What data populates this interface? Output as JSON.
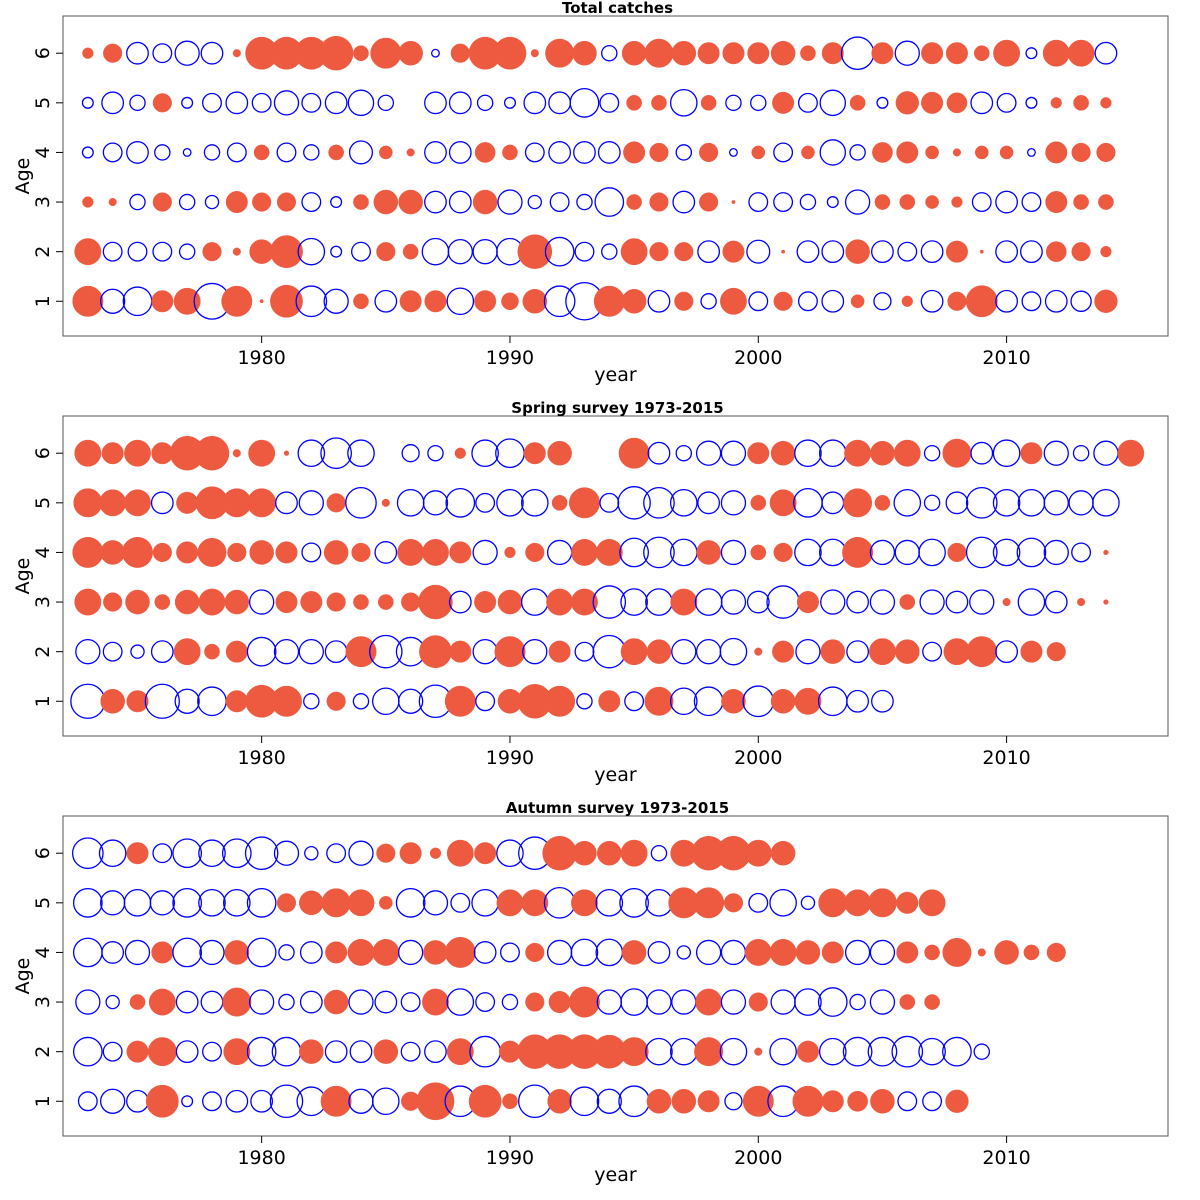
{
  "colors": {
    "positive": "#ee5a40",
    "negative": "#0000ff",
    "axis": "#000000"
  },
  "chart_data": [
    {
      "type": "scatter",
      "subtype": "bubble-residual",
      "title": "Total catches",
      "xlabel": "year",
      "ylabel": "Age",
      "xlim": [
        1972,
        2016.5
      ],
      "ylim": [
        0.3,
        6.75
      ],
      "xticks": [
        1980,
        1990,
        2000,
        2010
      ],
      "yticks": [
        1,
        2,
        3,
        4,
        5,
        6
      ],
      "years_start": 1973,
      "rows": {
        "6": [
          0.1,
          0.3,
          -0.4,
          -0.3,
          -0.5,
          -0.4,
          0.05,
          0.9,
          0.9,
          0.9,
          1.0,
          0.2,
          0.8,
          0.5,
          -0.05,
          0.3,
          0.9,
          0.9,
          0.05,
          0.7,
          0.5,
          -0.2,
          0.5,
          0.7,
          0.5,
          0.4,
          0.4,
          0.4,
          0.5,
          0.2,
          0.4,
          -0.9,
          0.4,
          -0.5,
          0.4,
          0.4,
          0.2,
          0.6,
          -0.1,
          0.6,
          0.6,
          -0.4
        ],
        "5": [
          -0.1,
          -0.4,
          -0.2,
          0.3,
          -0.1,
          -0.3,
          -0.4,
          -0.3,
          -0.5,
          -0.3,
          -0.4,
          -0.55,
          -0.2,
          0,
          -0.4,
          -0.4,
          -0.2,
          -0.1,
          -0.4,
          -0.4,
          -0.7,
          -0.3,
          0.2,
          0.2,
          -0.6,
          0.2,
          -0.2,
          -0.2,
          0.4,
          -0.3,
          -0.55,
          0.2,
          -0.1,
          0.45,
          0.4,
          0.35,
          -0.4,
          -0.3,
          -0.1,
          0.1,
          0.2,
          0.1
        ],
        "4": [
          -0.1,
          -0.3,
          -0.4,
          -0.2,
          -0.05,
          -0.2,
          -0.3,
          0.2,
          -0.3,
          -0.2,
          0.2,
          -0.45,
          0.15,
          0.05,
          -0.4,
          -0.4,
          0.35,
          0.2,
          -0.3,
          -0.4,
          -0.4,
          -0.4,
          0.4,
          0.3,
          -0.2,
          0.3,
          -0.05,
          0.15,
          -0.3,
          0.15,
          -0.55,
          -0.2,
          0.35,
          0.4,
          0.15,
          0.05,
          0.15,
          0.15,
          -0.05,
          0.4,
          0.3,
          0.3
        ],
        "3": [
          0.1,
          0.05,
          -0.2,
          0.3,
          -0.2,
          -0.15,
          0.4,
          0.3,
          0.3,
          -0.3,
          -0.1,
          0.2,
          0.5,
          0.5,
          -0.4,
          -0.4,
          0.5,
          -0.5,
          -0.15,
          -0.3,
          -0.2,
          -0.7,
          0.2,
          0.3,
          -0.4,
          0.3,
          0.01,
          -0.3,
          -0.3,
          -0.2,
          -0.1,
          -0.5,
          0.2,
          0.2,
          0.15,
          0.1,
          -0.3,
          -0.4,
          -0.3,
          0.4,
          0.2,
          0.2
        ],
        "2": [
          0.6,
          -0.3,
          -0.3,
          -0.3,
          -0.2,
          0.3,
          0.05,
          0.5,
          0.9,
          -0.6,
          -0.1,
          -0.3,
          0.3,
          0.2,
          -0.6,
          -0.5,
          -0.5,
          -0.6,
          1.0,
          -0.7,
          -0.3,
          -0.2,
          0.6,
          0.3,
          0.3,
          -0.4,
          0.4,
          -0.45,
          0.01,
          -0.4,
          -0.4,
          0.5,
          -0.4,
          -0.3,
          -0.4,
          0.4,
          0.01,
          -0.4,
          -0.4,
          0.35,
          0.3,
          0.1
        ],
        "1": [
          0.8,
          -0.5,
          -0.7,
          0.4,
          0.6,
          -1.1,
          0.8,
          0.01,
          0.9,
          -0.8,
          -0.5,
          0.2,
          -0.4,
          0.4,
          0.4,
          -0.6,
          0.4,
          0.25,
          0.5,
          -0.8,
          -1.2,
          0.8,
          0.5,
          -0.4,
          0.3,
          -0.2,
          0.6,
          -0.3,
          0.3,
          -0.3,
          -0.4,
          0.15,
          -0.25,
          0.1,
          -0.4,
          0.3,
          0.85,
          -0.4,
          -0.3,
          -0.4,
          -0.35,
          0.45
        ]
      }
    },
    {
      "type": "scatter",
      "subtype": "bubble-residual",
      "title": "Spring survey 1973-2015",
      "xlabel": "year",
      "ylabel": "Age",
      "xlim": [
        1972,
        2016.5
      ],
      "ylim": [
        0.3,
        6.75
      ],
      "xticks": [
        1980,
        1990,
        2000,
        2010
      ],
      "yticks": [
        1,
        2,
        3,
        4,
        5,
        6
      ],
      "years_start": 1973,
      "rows": {
        "6": [
          0.6,
          0.4,
          0.6,
          0.4,
          1.0,
          1.0,
          0.05,
          0.6,
          0.02,
          -0.6,
          -0.8,
          -0.6,
          0,
          -0.25,
          -0.2,
          0.1,
          -0.6,
          -0.7,
          0.4,
          0.5,
          0,
          0,
          0.8,
          -0.4,
          -0.2,
          -0.5,
          -0.5,
          0.4,
          0.5,
          -0.6,
          -0.6,
          0.6,
          0.5,
          0.6,
          -0.2,
          0.7,
          -0.4,
          -0.6,
          0.4,
          -0.5,
          -0.2,
          -0.5,
          0.6
        ],
        "5": [
          0.7,
          0.6,
          0.6,
          -0.4,
          0.4,
          0.9,
          0.7,
          0.7,
          -0.4,
          -0.5,
          0.3,
          -0.8,
          0.05,
          -0.6,
          -0.5,
          -0.7,
          -0.3,
          -0.6,
          -0.6,
          0.2,
          0.8,
          -0.3,
          -0.9,
          -0.8,
          -0.6,
          -0.4,
          -0.5,
          0.2,
          0.6,
          -0.7,
          -0.4,
          0.7,
          0.2,
          -0.6,
          -0.2,
          -0.4,
          -0.8,
          -0.6,
          -0.6,
          -0.5,
          -0.5,
          -0.6
        ],
        "4": [
          0.8,
          0.5,
          0.8,
          0.3,
          0.4,
          0.7,
          0.3,
          0.5,
          0.4,
          -0.3,
          0.5,
          0.3,
          -0.4,
          0.6,
          0.6,
          0.4,
          -0.5,
          0.1,
          0.3,
          -0.5,
          0.6,
          0.6,
          -0.7,
          -0.8,
          -0.6,
          0.5,
          -0.5,
          0.2,
          0.3,
          -0.6,
          -0.6,
          0.8,
          -0.5,
          -0.5,
          -0.6,
          0.3,
          -0.8,
          -0.6,
          -0.7,
          -0.5,
          -0.3,
          0.02
        ],
        "3": [
          0.6,
          0.3,
          0.5,
          0.2,
          0.5,
          0.6,
          0.5,
          -0.5,
          0.4,
          0.4,
          0.3,
          0.2,
          0.2,
          0.3,
          1.0,
          -0.4,
          0.4,
          0.5,
          -0.6,
          0.6,
          0.6,
          -0.9,
          -0.6,
          -0.6,
          0.6,
          -0.6,
          -0.5,
          -0.4,
          -0.9,
          0.4,
          -0.5,
          -0.4,
          -0.5,
          0.2,
          -0.5,
          -0.4,
          -0.5,
          0.05,
          -0.6,
          -0.4,
          0.05,
          0.02
        ],
        "2": [
          -0.5,
          -0.3,
          -0.15,
          -0.4,
          0.6,
          0.2,
          0.4,
          -0.7,
          -0.5,
          -0.5,
          -0.4,
          0.8,
          -0.9,
          -0.7,
          0.9,
          0.4,
          -0.5,
          0.8,
          -0.5,
          0.4,
          -0.3,
          -0.9,
          0.6,
          0.5,
          -0.5,
          -0.5,
          -0.6,
          0.05,
          0.4,
          -0.5,
          0.5,
          -0.4,
          0.6,
          0.5,
          -0.3,
          0.6,
          0.8,
          -0.4,
          0.4,
          0.3
        ],
        "1": [
          -1.0,
          0.5,
          0.4,
          -1.0,
          -0.5,
          -0.7,
          0.4,
          0.9,
          0.8,
          -0.2,
          0.3,
          -0.2,
          -0.6,
          -0.5,
          -0.9,
          0.8,
          -0.3,
          0.5,
          1.0,
          0.8,
          -0.2,
          0.4,
          -0.3,
          0.7,
          -0.6,
          -0.7,
          0.5,
          -0.8,
          0.5,
          0.6,
          -0.7,
          -0.4,
          -0.4
        ]
      }
    },
    {
      "type": "scatter",
      "subtype": "bubble-residual",
      "title": "Autumn survey 1973-2015",
      "xlabel": "year",
      "ylabel": "Age",
      "xlim": [
        1972,
        2016.5
      ],
      "ylim": [
        0.3,
        6.75
      ],
      "xticks": [
        1980,
        1990,
        2000,
        2010
      ],
      "yticks": [
        1,
        2,
        3,
        4,
        5,
        6
      ],
      "years_start": 1973,
      "rows": {
        "6": [
          -0.8,
          -0.6,
          0.4,
          -0.3,
          -0.7,
          -0.6,
          -0.7,
          -0.9,
          -0.5,
          -0.15,
          -0.3,
          -0.5,
          0.3,
          0.4,
          0.1,
          0.6,
          0.4,
          -0.6,
          -0.9,
          1.0,
          0.5,
          0.5,
          0.6,
          -0.2,
          0.6,
          1.0,
          1.0,
          0.6,
          0.5
        ],
        "5": [
          -0.7,
          -0.5,
          -0.6,
          -0.5,
          -0.7,
          -0.6,
          -0.6,
          -0.7,
          0.3,
          0.5,
          0.7,
          0.6,
          0.15,
          -0.7,
          -0.5,
          -0.3,
          -0.6,
          0.6,
          0.6,
          -0.8,
          0.6,
          -0.6,
          -0.7,
          -0.6,
          0.8,
          0.8,
          0.3,
          -0.3,
          -0.6,
          -0.15,
          0.7,
          0.6,
          0.7,
          0.4,
          0.6
        ],
        "4": [
          -0.7,
          -0.4,
          -0.5,
          0.4,
          -0.7,
          -0.5,
          0.5,
          -0.7,
          -0.2,
          -0.4,
          0.4,
          0.6,
          0.6,
          -0.5,
          0.5,
          0.8,
          -0.4,
          -0.3,
          0.3,
          -0.5,
          -0.6,
          -0.6,
          0.5,
          -0.4,
          -0.15,
          -0.5,
          -0.5,
          0.6,
          0.6,
          0.5,
          0.4,
          -0.5,
          -0.5,
          0.4,
          0.2,
          0.7,
          0.05,
          0.5,
          0.2,
          0.3
        ],
        "3": [
          -0.5,
          -0.15,
          0.2,
          0.6,
          -0.4,
          -0.4,
          0.7,
          -0.5,
          -0.2,
          -0.4,
          0.5,
          -0.5,
          -0.4,
          -0.3,
          0.6,
          -0.6,
          -0.3,
          -0.2,
          0.3,
          0.4,
          0.8,
          -0.5,
          -0.6,
          -0.5,
          -0.5,
          0.6,
          -0.5,
          0.3,
          -0.5,
          -0.6,
          -0.7,
          -0.2,
          -0.5,
          0.2,
          0.2
        ],
        "2": [
          -0.7,
          -0.3,
          0.4,
          0.7,
          -0.4,
          -0.3,
          0.6,
          -0.7,
          -0.7,
          0.5,
          -0.4,
          -0.4,
          0.5,
          -0.3,
          -0.4,
          0.6,
          -0.8,
          0.4,
          1.0,
          1.0,
          1.0,
          0.95,
          0.7,
          -0.6,
          -0.6,
          0.7,
          -0.6,
          0.05,
          -0.6,
          0.4,
          -0.6,
          -0.7,
          -0.7,
          -0.8,
          -0.6,
          -0.7,
          -0.2
        ],
        "1": [
          -0.3,
          -0.5,
          -0.4,
          0.9,
          -0.1,
          -0.3,
          -0.4,
          -0.4,
          -0.9,
          -0.7,
          0.8,
          -0.5,
          -0.6,
          0.3,
          1.2,
          -0.8,
          0.9,
          0.2,
          -0.9,
          0.5,
          -0.7,
          -0.5,
          -0.8,
          0.5,
          0.5,
          0.4,
          -0.25,
          0.8,
          -0.8,
          0.8,
          0.4,
          0.35,
          0.5,
          -0.3,
          -0.3,
          0.45
        ]
      }
    }
  ]
}
